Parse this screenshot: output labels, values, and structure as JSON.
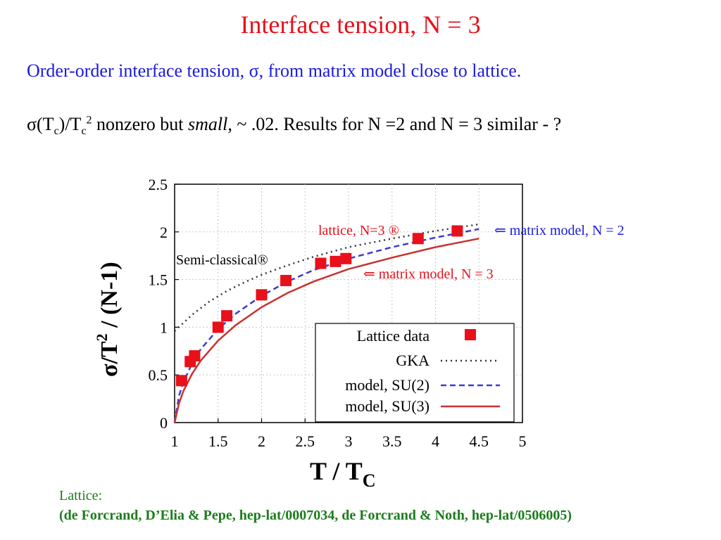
{
  "slide": {
    "title": "Interface tension, N = 3",
    "subtitle": "Order-order interface tension, σ, from matrix model close to lattice.",
    "statement": {
      "sigma": "σ",
      "open_paren": "(T",
      "c1": "c",
      "close_paren": ")/T",
      "c2": "c",
      "exp": "2",
      "text_before_italic": " nonzero but ",
      "italic": "small",
      "text_after_italic": ", ~ .02.  Results for N =2 and N = 3 similar - ?"
    },
    "footer_label": "Lattice:",
    "footer_refs": "(de Forcrand, D’Elia & Pepe, hep-lat/0007034, de Forcrand & Noth, hep-lat/0506005)"
  },
  "chart_data": {
    "type": "scatter",
    "xlabel": "T / T",
    "xlabel_sub": "C",
    "ylabel": "σ/T",
    "ylabel_sup": "2",
    "ylabel_rest": " / (N-1)",
    "xlim": [
      1,
      5
    ],
    "ylim": [
      0,
      2.5
    ],
    "x_ticks": [
      1,
      1.5,
      2,
      2.5,
      3,
      3.5,
      4,
      4.5,
      5
    ],
    "x_tick_labels": [
      "1",
      "1.5",
      "2",
      "2.5",
      "3",
      "3.5",
      "4",
      "4.5",
      "5"
    ],
    "y_ticks": [
      0,
      0.5,
      1,
      1.5,
      2,
      2.5
    ],
    "y_tick_labels": [
      "0",
      "0.5",
      "1",
      "1.5",
      "2",
      "2.5"
    ],
    "grid": true,
    "legend_position": "bottom-right",
    "colors": {
      "lattice": "#e8101a",
      "gka": "#333333",
      "su2": "#3b3bd6",
      "su3": "#c83232"
    },
    "series": [
      {
        "name": "Lattice data",
        "kind": "points",
        "x": [
          1.08,
          1.18,
          1.23,
          1.5,
          1.6,
          2.0,
          2.28,
          2.68,
          2.85,
          2.97,
          3.8,
          4.25
        ],
        "y": [
          0.44,
          0.64,
          0.7,
          1.0,
          1.12,
          1.34,
          1.49,
          1.67,
          1.69,
          1.72,
          1.93,
          2.01
        ]
      },
      {
        "name": "GKA",
        "kind": "dotted",
        "x": [
          1.0,
          1.2,
          1.4,
          1.6,
          1.8,
          2.0,
          2.3,
          2.6,
          3.0,
          3.5,
          4.0,
          4.5
        ],
        "y": [
          0.96,
          1.13,
          1.27,
          1.38,
          1.47,
          1.55,
          1.65,
          1.74,
          1.84,
          1.93,
          2.01,
          2.08
        ]
      },
      {
        "name": "model, SU(2)",
        "kind": "dashed",
        "x": [
          1.0,
          1.05,
          1.1,
          1.2,
          1.3,
          1.5,
          1.7,
          2.0,
          2.3,
          2.6,
          3.0,
          3.5,
          4.0,
          4.5
        ],
        "y": [
          0.0,
          0.28,
          0.42,
          0.62,
          0.77,
          0.98,
          1.14,
          1.33,
          1.48,
          1.6,
          1.72,
          1.84,
          1.94,
          2.03
        ]
      },
      {
        "name": "model, SU(3)",
        "kind": "solid",
        "x": [
          1.0,
          1.05,
          1.1,
          1.2,
          1.3,
          1.5,
          1.7,
          2.0,
          2.3,
          2.6,
          3.0,
          3.5,
          4.0,
          4.5
        ],
        "y": [
          0.0,
          0.2,
          0.33,
          0.51,
          0.65,
          0.86,
          1.02,
          1.21,
          1.36,
          1.48,
          1.61,
          1.73,
          1.84,
          1.93
        ]
      }
    ],
    "annotations": {
      "semi_classical": "Semi-classical®",
      "lattice_n3": "lattice, N=3 ®",
      "matrix_n2": "⇐ matrix model, N = 2",
      "matrix_n3": "⇐ matrix model, N = 3"
    }
  }
}
